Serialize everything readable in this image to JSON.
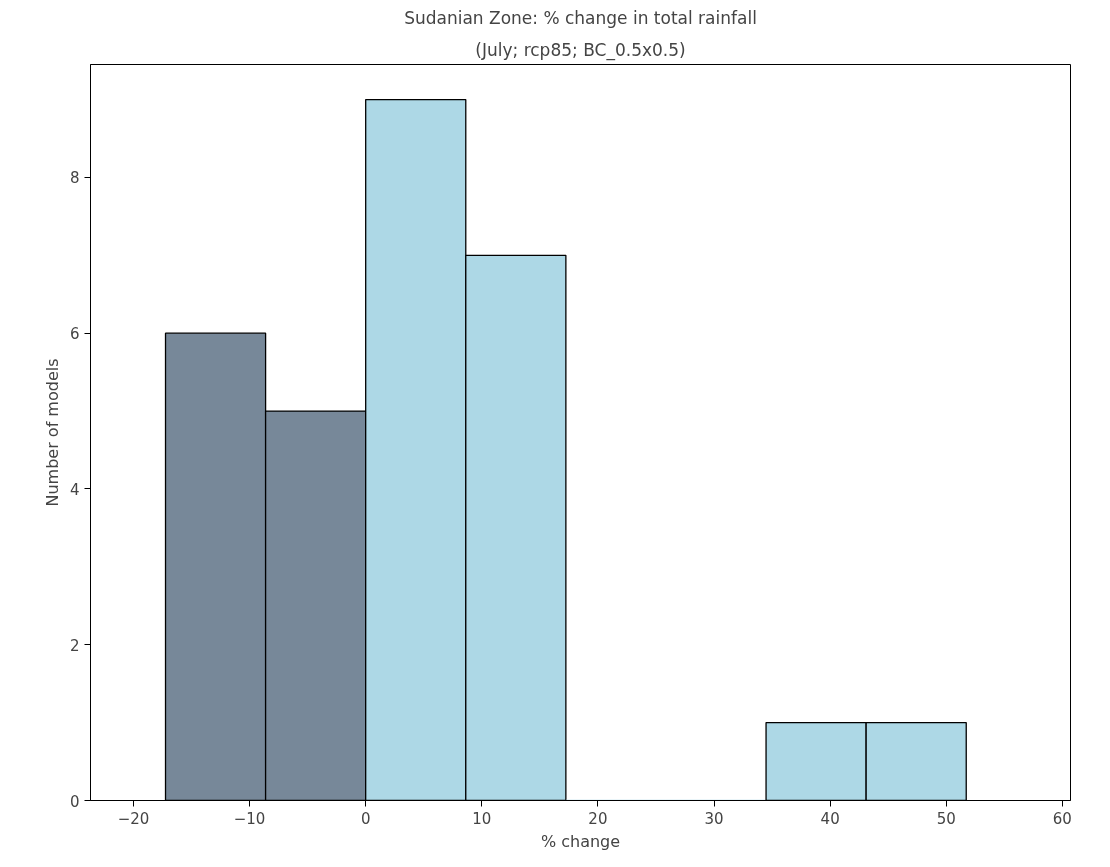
{
  "chart_data": {
    "type": "histogram",
    "title": "Sudanian Zone: % change in total rainfall",
    "subtitle": "(July; rcp85; BC_0.5x0.5)",
    "xlabel": "% change",
    "ylabel": "Number of models",
    "bins": [
      -17.24,
      -8.62,
      0,
      8.62,
      17.24,
      25.86,
      34.48,
      43.1,
      51.72
    ],
    "values": [
      6,
      5,
      9,
      7,
      0,
      0,
      1,
      1
    ],
    "colors": [
      "#778899",
      "#778899",
      "#add8e6",
      "#add8e6",
      "#add8e6",
      "#add8e6",
      "#add8e6",
      "#add8e6"
    ],
    "xlim": [
      -23.7,
      60.7
    ],
    "ylim": [
      0,
      9.45
    ],
    "xticks": [
      {
        "value": -20,
        "label": "−20"
      },
      {
        "value": -10,
        "label": "−10"
      },
      0,
      10,
      20,
      30,
      40,
      50,
      60
    ],
    "yticks": [
      0,
      2,
      4,
      6,
      8
    ],
    "grid": false
  }
}
